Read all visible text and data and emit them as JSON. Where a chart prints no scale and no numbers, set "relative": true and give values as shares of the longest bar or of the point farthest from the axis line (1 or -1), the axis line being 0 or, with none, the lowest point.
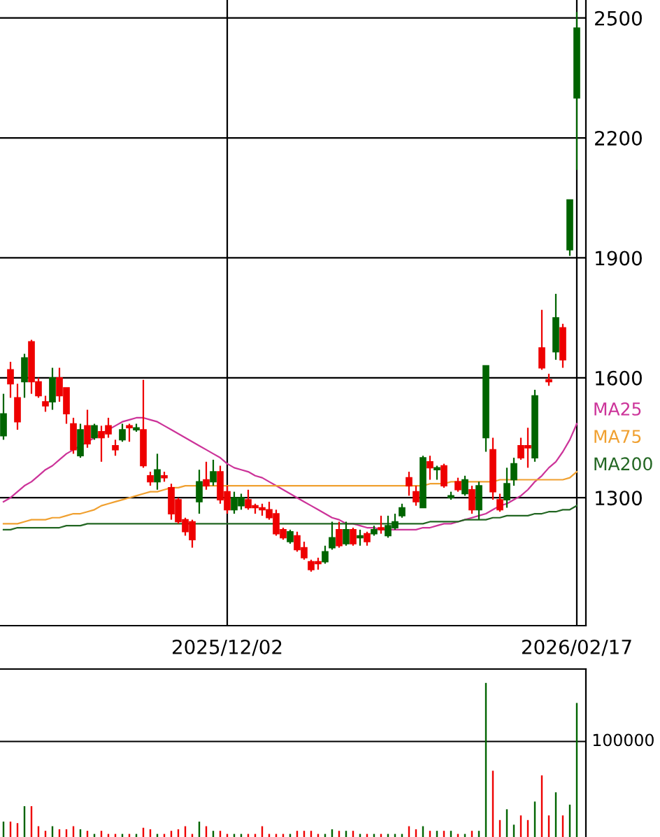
{
  "chart_data": [
    {
      "type": "candlestick",
      "categories": [
        null,
        null,
        null,
        null,
        null,
        null,
        null,
        null,
        null,
        null,
        null,
        null,
        null,
        null,
        null,
        null,
        null,
        null,
        null,
        null,
        null,
        null,
        null,
        null,
        null,
        null,
        null,
        null,
        null,
        null,
        null,
        null,
        "2025/12/02",
        null,
        null,
        null,
        null,
        null,
        null,
        null,
        null,
        null,
        null,
        null,
        null,
        null,
        null,
        null,
        null,
        null,
        null,
        null,
        null,
        null,
        null,
        null,
        null,
        null,
        null,
        null,
        null,
        null,
        null,
        null,
        null,
        null,
        null,
        null,
        null,
        null,
        null,
        null,
        null,
        null,
        null,
        null,
        null,
        null,
        null,
        null,
        null,
        null,
        "2026/02/17"
      ],
      "ohlc": [
        [
          1455,
          1560,
          1445,
          1510
        ],
        [
          1620,
          1640,
          1550,
          1585
        ],
        [
          1550,
          1585,
          1470,
          1490
        ],
        [
          1590,
          1660,
          1550,
          1650
        ],
        [
          1690,
          1695,
          1560,
          1590
        ],
        [
          1590,
          1600,
          1550,
          1555
        ],
        [
          1540,
          1555,
          1515,
          1530
        ],
        [
          1540,
          1625,
          1520,
          1600
        ],
        [
          1600,
          1625,
          1540,
          1555
        ],
        [
          1575,
          1575,
          1485,
          1510
        ],
        [
          1485,
          1500,
          1410,
          1420
        ],
        [
          1405,
          1485,
          1400,
          1470
        ],
        [
          1480,
          1520,
          1425,
          1435
        ],
        [
          1450,
          1485,
          1445,
          1480
        ],
        [
          1465,
          1480,
          1390,
          1450
        ],
        [
          1480,
          1500,
          1450,
          1460
        ],
        [
          1430,
          1445,
          1405,
          1420
        ],
        [
          1445,
          1485,
          1440,
          1470
        ],
        [
          1480,
          1485,
          1440,
          1475
        ],
        [
          1470,
          1485,
          1465,
          1475
        ],
        [
          1470,
          1595,
          1375,
          1380
        ],
        [
          1355,
          1365,
          1330,
          1340
        ],
        [
          1340,
          1410,
          1320,
          1370
        ],
        [
          1355,
          1365,
          1340,
          1350
        ],
        [
          1325,
          1335,
          1245,
          1260
        ],
        [
          1295,
          1300,
          1235,
          1240
        ],
        [
          1245,
          1250,
          1205,
          1215
        ],
        [
          1240,
          1245,
          1175,
          1195
        ],
        [
          1290,
          1370,
          1260,
          1340
        ],
        [
          1345,
          1390,
          1320,
          1330
        ],
        [
          1340,
          1395,
          1330,
          1365
        ],
        [
          1365,
          1380,
          1285,
          1295
        ],
        [
          1315,
          1330,
          1260,
          1270
        ],
        [
          1270,
          1315,
          1260,
          1300
        ],
        [
          1280,
          1310,
          1270,
          1300
        ],
        [
          1295,
          1320,
          1270,
          1275
        ],
        [
          1280,
          1285,
          1260,
          1275
        ],
        [
          1275,
          1285,
          1255,
          1270
        ],
        [
          1270,
          1290,
          1245,
          1250
        ],
        [
          1260,
          1270,
          1205,
          1210
        ],
        [
          1220,
          1225,
          1195,
          1200
        ],
        [
          1190,
          1220,
          1185,
          1215
        ],
        [
          1205,
          1215,
          1165,
          1170
        ],
        [
          1175,
          1190,
          1145,
          1150
        ],
        [
          1140,
          1145,
          1115,
          1120
        ],
        [
          1140,
          1150,
          1120,
          1135
        ],
        [
          1140,
          1180,
          1135,
          1165
        ],
        [
          1175,
          1240,
          1170,
          1200
        ],
        [
          1220,
          1240,
          1175,
          1180
        ],
        [
          1185,
          1240,
          1180,
          1220
        ],
        [
          1220,
          1225,
          1180,
          1185
        ],
        [
          1200,
          1220,
          1180,
          1205
        ],
        [
          1210,
          1215,
          1180,
          1190
        ],
        [
          1210,
          1230,
          1205,
          1220
        ],
        [
          1225,
          1255,
          1210,
          1220
        ],
        [
          1205,
          1255,
          1200,
          1230
        ],
        [
          1225,
          1260,
          1220,
          1240
        ],
        [
          1255,
          1285,
          1250,
          1275
        ],
        [
          1350,
          1365,
          1305,
          1330
        ],
        [
          1315,
          1330,
          1280,
          1290
        ],
        [
          1275,
          1405,
          1275,
          1400
        ],
        [
          1390,
          1405,
          1345,
          1375
        ],
        [
          1370,
          1380,
          1345,
          1375
        ],
        [
          1380,
          1385,
          1325,
          1330
        ],
        [
          1300,
          1315,
          1295,
          1305
        ],
        [
          1340,
          1350,
          1315,
          1320
        ],
        [
          1310,
          1355,
          1305,
          1345
        ],
        [
          1320,
          1330,
          1260,
          1270
        ],
        [
          1270,
          1340,
          1245,
          1330
        ],
        [
          1450,
          1630,
          1415,
          1630
        ],
        [
          1420,
          1450,
          1295,
          1315
        ],
        [
          1295,
          1310,
          1265,
          1270
        ],
        [
          1295,
          1375,
          1275,
          1335
        ],
        [
          1345,
          1400,
          1330,
          1385
        ],
        [
          1430,
          1450,
          1395,
          1400
        ],
        [
          1430,
          1475,
          1375,
          1425
        ],
        [
          1400,
          1570,
          1390,
          1555
        ],
        [
          1675,
          1770,
          1620,
          1625
        ],
        [
          1595,
          1610,
          1580,
          1590
        ],
        [
          1665,
          1810,
          1645,
          1750
        ],
        [
          1725,
          1735,
          1625,
          1645
        ],
        [
          1920,
          2045,
          1905,
          2045
        ],
        [
          2300,
          2515,
          2120,
          2475
        ]
      ],
      "colors": [
        "#006400",
        "#ee0000",
        "#ee0000",
        "#006400",
        "#ee0000",
        "#ee0000",
        "#ee0000",
        "#006400",
        "#ee0000",
        "#ee0000",
        "#ee0000",
        "#006400",
        "#ee0000",
        "#006400",
        "#ee0000",
        "#ee0000",
        "#ee0000",
        "#006400",
        "#ee0000",
        "#006400",
        "#ee0000",
        "#ee0000",
        "#006400",
        "#ee0000",
        "#ee0000",
        "#ee0000",
        "#ee0000",
        "#ee0000",
        "#006400",
        "#ee0000",
        "#006400",
        "#ee0000",
        "#ee0000",
        "#006400",
        "#006400",
        "#ee0000",
        "#ee0000",
        "#ee0000",
        "#ee0000",
        "#ee0000",
        "#ee0000",
        "#006400",
        "#ee0000",
        "#ee0000",
        "#ee0000",
        "#ee0000",
        "#006400",
        "#006400",
        "#ee0000",
        "#006400",
        "#ee0000",
        "#006400",
        "#ee0000",
        "#006400",
        "#ee0000",
        "#006400",
        "#006400",
        "#006400",
        "#ee0000",
        "#ee0000",
        "#006400",
        "#ee0000",
        "#006400",
        "#ee0000",
        "#006400",
        "#ee0000",
        "#006400",
        "#ee0000",
        "#006400",
        "#006400",
        "#ee0000",
        "#ee0000",
        "#006400",
        "#006400",
        "#ee0000",
        "#ee0000",
        "#006400",
        "#ee0000",
        "#ee0000",
        "#006400",
        "#ee0000",
        "#006400",
        "#006400"
      ],
      "series": [
        {
          "name": "MA25",
          "type": "line",
          "color": "#cc3399",
          "values": [
            1290,
            1300,
            1315,
            1330,
            1340,
            1355,
            1370,
            1380,
            1395,
            1410,
            1420,
            1430,
            1440,
            1450,
            1460,
            1470,
            1480,
            1490,
            1495,
            1500,
            1500,
            1495,
            1490,
            1480,
            1470,
            1460,
            1450,
            1440,
            1430,
            1420,
            1410,
            1400,
            1385,
            1375,
            1370,
            1365,
            1355,
            1350,
            1340,
            1330,
            1320,
            1310,
            1300,
            1290,
            1280,
            1270,
            1260,
            1250,
            1245,
            1235,
            1235,
            1230,
            1225,
            1225,
            1220,
            1220,
            1220,
            1220,
            1220,
            1220,
            1225,
            1225,
            1230,
            1235,
            1235,
            1240,
            1245,
            1250,
            1255,
            1260,
            1270,
            1280,
            1285,
            1295,
            1305,
            1320,
            1340,
            1355,
            1375,
            1390,
            1415,
            1445,
            1485
          ]
        },
        {
          "name": "MA75",
          "type": "line",
          "color": "#f0a030",
          "values": [
            1235,
            1235,
            1235,
            1240,
            1245,
            1245,
            1245,
            1250,
            1250,
            1255,
            1260,
            1260,
            1265,
            1270,
            1280,
            1285,
            1290,
            1295,
            1300,
            1305,
            1310,
            1315,
            1315,
            1320,
            1325,
            1325,
            1330,
            1330,
            1330,
            1330,
            1330,
            1330,
            1330,
            1330,
            1330,
            1330,
            1330,
            1330,
            1330,
            1330,
            1330,
            1330,
            1330,
            1330,
            1330,
            1330,
            1330,
            1330,
            1330,
            1330,
            1330,
            1330,
            1330,
            1330,
            1330,
            1330,
            1330,
            1330,
            1330,
            1330,
            1330,
            1335,
            1335,
            1335,
            1340,
            1340,
            1340,
            1340,
            1340,
            1340,
            1340,
            1345,
            1345,
            1345,
            1345,
            1345,
            1345,
            1345,
            1345,
            1345,
            1345,
            1350,
            1365
          ]
        },
        {
          "name": "MA200",
          "type": "line",
          "color": "#226622",
          "values": [
            1220,
            1220,
            1225,
            1225,
            1225,
            1225,
            1225,
            1225,
            1225,
            1230,
            1230,
            1230,
            1235,
            1235,
            1235,
            1235,
            1235,
            1235,
            1235,
            1235,
            1235,
            1235,
            1235,
            1235,
            1235,
            1235,
            1235,
            1235,
            1235,
            1235,
            1235,
            1235,
            1235,
            1235,
            1235,
            1235,
            1235,
            1235,
            1235,
            1235,
            1235,
            1235,
            1235,
            1235,
            1235,
            1235,
            1235,
            1235,
            1235,
            1235,
            1235,
            1235,
            1235,
            1235,
            1235,
            1235,
            1235,
            1235,
            1235,
            1235,
            1235,
            1240,
            1240,
            1240,
            1240,
            1240,
            1245,
            1245,
            1245,
            1245,
            1250,
            1250,
            1255,
            1255,
            1255,
            1255,
            1260,
            1260,
            1265,
            1265,
            1270,
            1270,
            1280
          ]
        }
      ],
      "ylim": [
        980,
        2545
      ],
      "yticks": [
        1300,
        1600,
        1900,
        2200,
        2500
      ],
      "grid": true,
      "legend": "right"
    },
    {
      "type": "bar",
      "categories": [
        null,
        null,
        null,
        null,
        null,
        null,
        null,
        null,
        null,
        null,
        null,
        null,
        null,
        null,
        null,
        null,
        null,
        null,
        null,
        null,
        null,
        null,
        null,
        null,
        null,
        null,
        null,
        null,
        null,
        null,
        null,
        null,
        "2025/12/02",
        null,
        null,
        null,
        null,
        null,
        null,
        null,
        null,
        null,
        null,
        null,
        null,
        null,
        null,
        null,
        null,
        null,
        null,
        null,
        null,
        null,
        null,
        null,
        null,
        null,
        null,
        null,
        null,
        null,
        null,
        null,
        null,
        null,
        null,
        null,
        null,
        null,
        null,
        null,
        null,
        null,
        null,
        null,
        null,
        null,
        null,
        null,
        null,
        null,
        "2026/02/17"
      ],
      "values": [
        0.1,
        0.1,
        0.09,
        0.2,
        0.2,
        0.07,
        0.04,
        0.07,
        0.05,
        0.05,
        0.07,
        0.05,
        0.04,
        0.02,
        0.04,
        0.02,
        0.02,
        0.02,
        0.02,
        0.02,
        0.06,
        0.05,
        0.02,
        0.02,
        0.04,
        0.05,
        0.07,
        0.02,
        0.1,
        0.07,
        0.04,
        0.04,
        0.02,
        0.02,
        0.02,
        0.02,
        0.02,
        0.07,
        0.02,
        0.02,
        0.02,
        0.02,
        0.04,
        0.04,
        0.04,
        0.02,
        0.02,
        0.05,
        0.04,
        0.04,
        0.04,
        0.02,
        0.02,
        0.02,
        0.02,
        0.02,
        0.02,
        0.02,
        0.07,
        0.05,
        0.07,
        0.04,
        0.04,
        0.04,
        0.04,
        0.02,
        0.02,
        0.04,
        0.04,
        1,
        0.43,
        0.11,
        0.18,
        0.08,
        0.14,
        0.11,
        0.23,
        0.4,
        0.14,
        0.29,
        0.14,
        0.21,
        0.87
      ],
      "colors": [
        "#006400",
        "#ee0000",
        "#ee0000",
        "#006400",
        "#ee0000",
        "#ee0000",
        "#ee0000",
        "#006400",
        "#ee0000",
        "#ee0000",
        "#ee0000",
        "#006400",
        "#ee0000",
        "#006400",
        "#ee0000",
        "#ee0000",
        "#ee0000",
        "#006400",
        "#ee0000",
        "#006400",
        "#ee0000",
        "#ee0000",
        "#006400",
        "#ee0000",
        "#ee0000",
        "#ee0000",
        "#ee0000",
        "#ee0000",
        "#006400",
        "#ee0000",
        "#006400",
        "#ee0000",
        "#ee0000",
        "#006400",
        "#006400",
        "#ee0000",
        "#ee0000",
        "#ee0000",
        "#ee0000",
        "#ee0000",
        "#ee0000",
        "#006400",
        "#ee0000",
        "#ee0000",
        "#ee0000",
        "#ee0000",
        "#006400",
        "#006400",
        "#ee0000",
        "#006400",
        "#ee0000",
        "#006400",
        "#ee0000",
        "#006400",
        "#ee0000",
        "#006400",
        "#006400",
        "#006400",
        "#ee0000",
        "#ee0000",
        "#006400",
        "#ee0000",
        "#006400",
        "#ee0000",
        "#006400",
        "#ee0000",
        "#006400",
        "#ee0000",
        "#006400",
        "#006400",
        "#ee0000",
        "#ee0000",
        "#006400",
        "#006400",
        "#ee0000",
        "#ee0000",
        "#006400",
        "#ee0000",
        "#ee0000",
        "#006400",
        "#ee0000",
        "#006400",
        "#006400"
      ],
      "relative": true,
      "tick_labels": false,
      "ref_lines": [
        {
          "axis": "y",
          "value": 0.62
        }
      ],
      "annotations": [
        "100000"
      ]
    }
  ]
}
